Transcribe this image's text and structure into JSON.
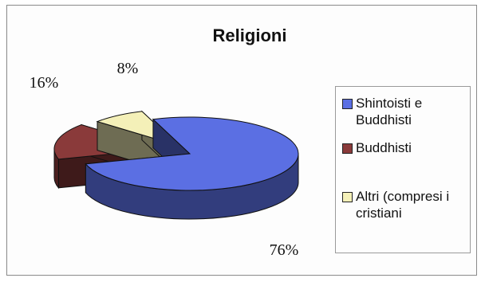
{
  "chart_data": {
    "type": "pie",
    "title": "Religioni",
    "categories": [
      "Shintoisti e Buddhisti",
      "Buddhisti",
      "Altri (compresi i cristiani"
    ],
    "values": [
      76,
      16,
      8
    ],
    "labels": [
      "76%",
      "16%",
      "8%"
    ],
    "colors": [
      "#5b6fe3",
      "#8a3a3a",
      "#f4f0b8"
    ],
    "legend_position": "right",
    "three_d": true
  },
  "legend": {
    "items": [
      {
        "label": "Shintoisti e\nBuddhisti",
        "color": "#5b6fe3"
      },
      {
        "label": "Buddhisti",
        "color": "#8a3a3a"
      },
      {
        "label": "Altri (compresi i\ncristiani",
        "color": "#f4f0b8"
      }
    ]
  }
}
